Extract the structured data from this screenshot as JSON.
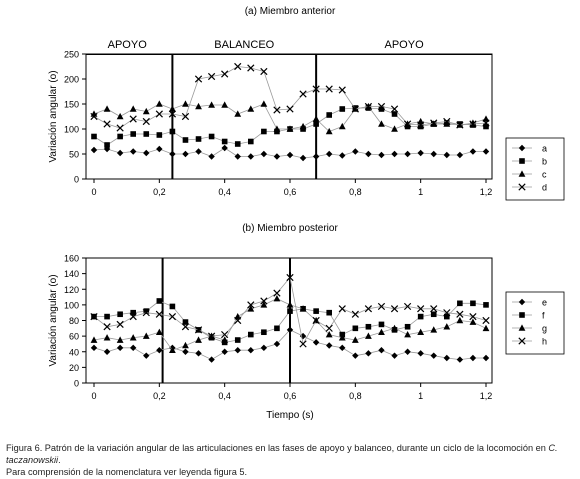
{
  "caption": {
    "line1_prefix": "Figura 6. Patrón de la variación angular de las articulaciones en las fases de apoyo y balanceo, durante un ciclo de la locomoción en ",
    "line1_species": "C. taczanowskii",
    "line1_suffix": ".",
    "line2": "Para comprensión de la nomenclatura ver leyenda figura 5."
  },
  "chart_data": [
    {
      "type": "scatter",
      "title": "(a) Miembro anterior",
      "ylabel": "Variación angular (o)",
      "xlabel": "",
      "xlim": [
        0,
        1.2
      ],
      "ylim": [
        0,
        250
      ],
      "xticks": [
        "0",
        "0,2",
        "0,4",
        "0,6",
        "0,8",
        "1",
        "1,2"
      ],
      "yticks": [
        "0",
        "50",
        "100",
        "150",
        "200",
        "250"
      ],
      "grid": false,
      "legend": "right",
      "phases": [
        {
          "label": "APOYO",
          "from": 0,
          "to": 0.24
        },
        {
          "label": "BALANCEO",
          "from": 0.24,
          "to": 0.68
        },
        {
          "label": "APOYO",
          "from": 0.68,
          "to": 1.2
        }
      ],
      "dividers": [
        0.24,
        0.68
      ],
      "x": [
        0,
        0.04,
        0.08,
        0.12,
        0.16,
        0.2,
        0.24,
        0.28,
        0.32,
        0.36,
        0.4,
        0.44,
        0.48,
        0.52,
        0.56,
        0.6,
        0.64,
        0.68,
        0.72,
        0.76,
        0.8,
        0.84,
        0.88,
        0.92,
        0.96,
        1,
        1.04,
        1.08,
        1.12,
        1.16,
        1.2
      ],
      "series": [
        {
          "name": "a",
          "marker": "diamond",
          "values": [
            58,
            60,
            52,
            55,
            52,
            60,
            50,
            50,
            55,
            45,
            62,
            45,
            45,
            50,
            45,
            48,
            42,
            45,
            50,
            47,
            55,
            50,
            48,
            50,
            50,
            52,
            50,
            48,
            48,
            55,
            55
          ]
        },
        {
          "name": "b",
          "marker": "square",
          "values": [
            85,
            68,
            85,
            90,
            90,
            88,
            95,
            78,
            80,
            85,
            75,
            70,
            75,
            95,
            95,
            100,
            100,
            110,
            128,
            140,
            142,
            142,
            140,
            130,
            105,
            105,
            110,
            112,
            110,
            108,
            105
          ]
        },
        {
          "name": "c",
          "marker": "triangle",
          "values": [
            130,
            140,
            125,
            140,
            135,
            150,
            140,
            150,
            145,
            148,
            148,
            130,
            140,
            150,
            100,
            100,
            105,
            120,
            95,
            105,
            140,
            145,
            110,
            100,
            110,
            115,
            110,
            110,
            108,
            112,
            120
          ]
        },
        {
          "name": "d",
          "marker": "x",
          "values": [
            125,
            110,
            102,
            120,
            115,
            130,
            130,
            125,
            200,
            205,
            210,
            225,
            222,
            215,
            138,
            140,
            170,
            180,
            180,
            178,
            140,
            145,
            145,
            140,
            110,
            108,
            112,
            115,
            108,
            110,
            112
          ]
        }
      ]
    },
    {
      "type": "scatter",
      "title": "(b) Miembro posterior",
      "ylabel": "Variación angular (o)",
      "xlabel": "Tiempo (s)",
      "xlim": [
        0,
        1.2
      ],
      "ylim": [
        0,
        160
      ],
      "xticks": [
        "0",
        "0,2",
        "0,4",
        "0,6",
        "0,8",
        "1",
        "1,2"
      ],
      "yticks": [
        "0",
        "20",
        "40",
        "60",
        "80",
        "100",
        "120",
        "140",
        "160"
      ],
      "grid": false,
      "legend": "right",
      "dividers": [
        0.21,
        0.6
      ],
      "x": [
        0,
        0.04,
        0.08,
        0.12,
        0.16,
        0.2,
        0.24,
        0.28,
        0.32,
        0.36,
        0.4,
        0.44,
        0.48,
        0.52,
        0.56,
        0.6,
        0.64,
        0.68,
        0.72,
        0.76,
        0.8,
        0.84,
        0.88,
        0.92,
        0.96,
        1,
        1.04,
        1.08,
        1.12,
        1.16,
        1.2
      ],
      "series": [
        {
          "name": "e",
          "marker": "diamond",
          "values": [
            45,
            40,
            45,
            45,
            35,
            42,
            45,
            40,
            38,
            30,
            40,
            42,
            42,
            45,
            50,
            68,
            60,
            52,
            48,
            45,
            35,
            38,
            42,
            35,
            40,
            38,
            35,
            32,
            30,
            32,
            32
          ]
        },
        {
          "name": "f",
          "marker": "square",
          "values": [
            85,
            85,
            88,
            90,
            92,
            105,
            98,
            78,
            68,
            58,
            52,
            55,
            62,
            65,
            70,
            92,
            95,
            92,
            90,
            62,
            70,
            72,
            75,
            68,
            72,
            85,
            88,
            85,
            102,
            102,
            100
          ]
        },
        {
          "name": "g",
          "marker": "triangle",
          "values": [
            55,
            58,
            55,
            58,
            60,
            65,
            42,
            48,
            55,
            60,
            55,
            85,
            95,
            100,
            108,
            100,
            95,
            80,
            62,
            58,
            55,
            60,
            65,
            70,
            62,
            65,
            68,
            72,
            80,
            78,
            70
          ]
        },
        {
          "name": "h",
          "marker": "x",
          "values": [
            85,
            72,
            75,
            85,
            90,
            88,
            85,
            72,
            68,
            60,
            62,
            80,
            100,
            105,
            115,
            135,
            50,
            80,
            70,
            95,
            88,
            95,
            98,
            95,
            98,
            95,
            95,
            90,
            88,
            85,
            80
          ]
        }
      ]
    }
  ]
}
